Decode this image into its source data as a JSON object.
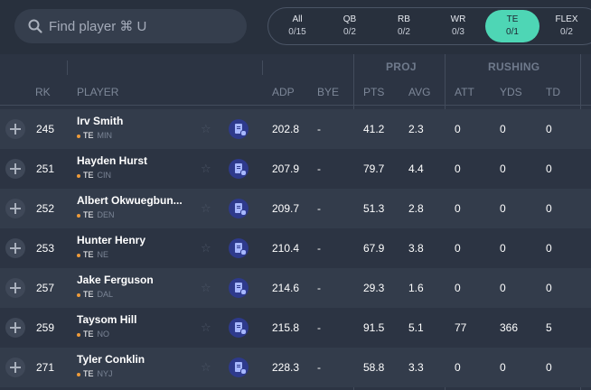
{
  "search": {
    "placeholder": "Find player ⌘ U"
  },
  "position_tabs": [
    {
      "label": "All",
      "count": "0/15",
      "active": false
    },
    {
      "label": "QB",
      "count": "0/2",
      "active": false
    },
    {
      "label": "RB",
      "count": "0/2",
      "active": false
    },
    {
      "label": "WR",
      "count": "0/3",
      "active": false
    },
    {
      "label": "TE",
      "count": "0/1",
      "active": true
    },
    {
      "label": "FLEX",
      "count": "0/2",
      "active": false
    }
  ],
  "header": {
    "groups": {
      "proj": "PROJ",
      "rushing": "RUSHING"
    },
    "columns": {
      "rk": "RK",
      "player": "PLAYER",
      "adp": "ADP",
      "bye": "BYE",
      "pts": "PTS",
      "avg": "AVG",
      "att": "ATT",
      "yds": "YDS",
      "td": "TD"
    }
  },
  "players": [
    {
      "rk": "245",
      "name": "Irv Smith",
      "pos": "TE",
      "team": "MIN",
      "adp": "202.8",
      "bye": "-",
      "pts": "41.2",
      "avg": "2.3",
      "att": "0",
      "yds": "0",
      "td": "0"
    },
    {
      "rk": "251",
      "name": "Hayden Hurst",
      "pos": "TE",
      "team": "CIN",
      "adp": "207.9",
      "bye": "-",
      "pts": "79.7",
      "avg": "4.4",
      "att": "0",
      "yds": "0",
      "td": "0"
    },
    {
      "rk": "252",
      "name": "Albert Okwuegbun...",
      "pos": "TE",
      "team": "DEN",
      "adp": "209.7",
      "bye": "-",
      "pts": "51.3",
      "avg": "2.8",
      "att": "0",
      "yds": "0",
      "td": "0"
    },
    {
      "rk": "253",
      "name": "Hunter Henry",
      "pos": "TE",
      "team": "NE",
      "adp": "210.4",
      "bye": "-",
      "pts": "67.9",
      "avg": "3.8",
      "att": "0",
      "yds": "0",
      "td": "0"
    },
    {
      "rk": "257",
      "name": "Jake Ferguson",
      "pos": "TE",
      "team": "DAL",
      "adp": "214.6",
      "bye": "-",
      "pts": "29.3",
      "avg": "1.6",
      "att": "0",
      "yds": "0",
      "td": "0"
    },
    {
      "rk": "259",
      "name": "Taysom Hill",
      "pos": "TE",
      "team": "NO",
      "adp": "215.8",
      "bye": "-",
      "pts": "91.5",
      "avg": "5.1",
      "att": "77",
      "yds": "366",
      "td": "5"
    },
    {
      "rk": "271",
      "name": "Tyler Conklin",
      "pos": "TE",
      "team": "NYJ",
      "adp": "228.3",
      "bye": "-",
      "pts": "58.8",
      "avg": "3.3",
      "att": "0",
      "yds": "0",
      "td": "0"
    }
  ],
  "colors": {
    "accent": "#4ed6b5",
    "position_dot": "#ee9b3a",
    "news_badge": "#2e3a8c"
  },
  "icons": {
    "search": "search-icon",
    "add": "plus-icon",
    "favorite": "star-icon",
    "news": "news-icon"
  }
}
